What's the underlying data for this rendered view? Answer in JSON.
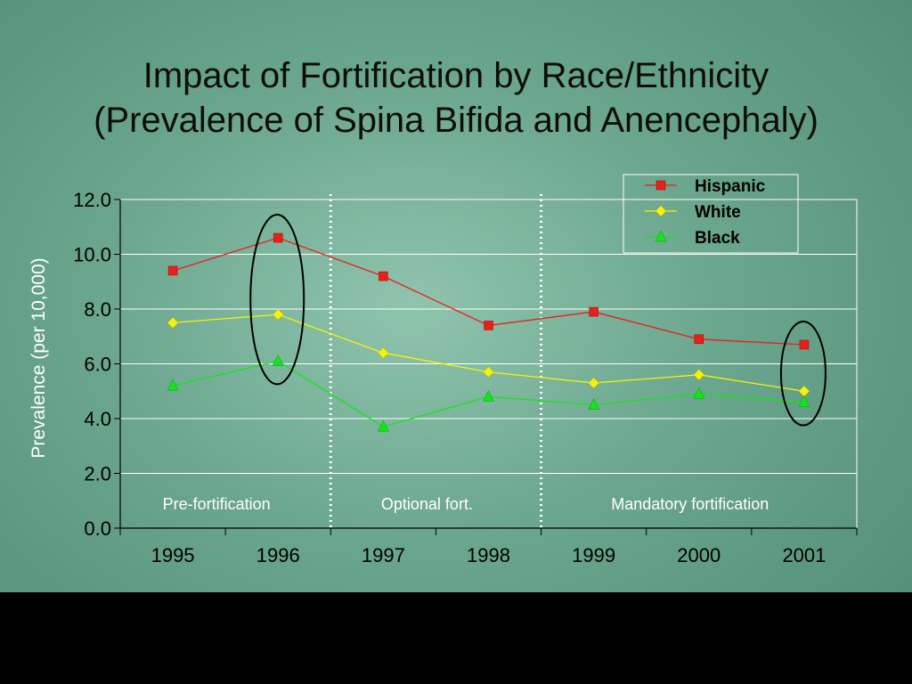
{
  "slide": {
    "title_line1": "Impact of Fortification by Race/Ethnicity",
    "title_line2": "(Prevalence of Spina Bifida and Anencephaly)"
  },
  "chart_data": {
    "type": "line",
    "xlabel": "",
    "ylabel": "Prevalence (per 10,000)",
    "x": [
      "1995",
      "1996",
      "1997",
      "1998",
      "1999",
      "2000",
      "2001"
    ],
    "ylim": [
      0,
      12
    ],
    "yticks": [
      "0.0",
      "2.0",
      "4.0",
      "6.0",
      "8.0",
      "10.0",
      "12.0"
    ],
    "grid": true,
    "legend": "top-right",
    "series": [
      {
        "name": "Hispanic",
        "color": "#e8201c",
        "marker": "square",
        "values": [
          9.4,
          10.6,
          9.2,
          7.4,
          7.9,
          6.9,
          6.7
        ]
      },
      {
        "name": "White",
        "color": "#f5f20a",
        "marker": "diamond",
        "values": [
          7.5,
          7.8,
          6.4,
          5.7,
          5.3,
          5.6,
          5.0
        ]
      },
      {
        "name": "Black",
        "color": "#12e61a",
        "marker": "triangle",
        "values": [
          5.2,
          6.1,
          3.7,
          4.8,
          4.5,
          4.9,
          4.6
        ]
      }
    ],
    "regions": [
      {
        "label": "Pre-fortification"
      },
      {
        "label": "Optional fort."
      },
      {
        "label": "Mandatory fortification"
      }
    ],
    "highlighted_years": [
      "1996",
      "2001"
    ]
  }
}
